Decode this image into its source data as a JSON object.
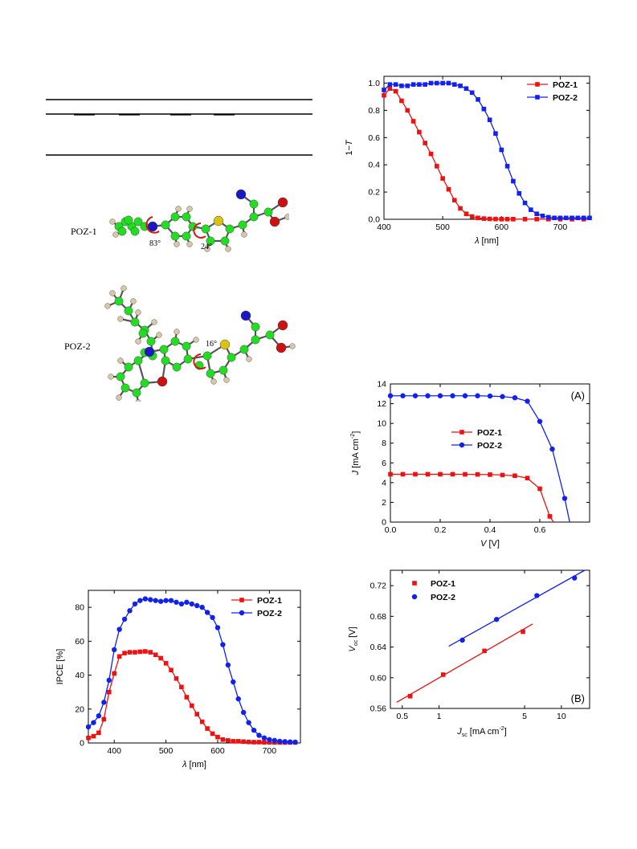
{
  "table_fragment": {
    "rules": 3
  },
  "molecules": {
    "poz1": {
      "label": "POZ-1",
      "angle_a": "83°",
      "angle_b": "24°"
    },
    "poz2": {
      "label": "POZ-2",
      "angle_a": "16°"
    }
  },
  "atom_colors": {
    "C": "#22dd22",
    "H": "#d8c8a8",
    "N": "#1a1ac0",
    "O": "#cc1111",
    "S": "#d8c21a"
  },
  "series_colors": {
    "POZ-1": "#ee1111",
    "POZ-2": "#1122ee"
  },
  "chart_data": [
    {
      "id": "absorbance",
      "type": "line",
      "xlabel_italic": "λ",
      "xlabel_rest": " [nm]",
      "ylabel_prefix": "1−",
      "ylabel_italic": "T",
      "xlim": [
        400,
        750
      ],
      "ylim": [
        0,
        1.05
      ],
      "xticks": [
        400,
        500,
        600,
        700
      ],
      "yticks": [
        "0.0",
        "0.2",
        "0.4",
        "0.6",
        "0.8",
        "1.0"
      ],
      "legend_position": "top-right",
      "series": [
        {
          "name": "POZ-1",
          "marker": "square",
          "x": [
            400,
            410,
            420,
            430,
            440,
            450,
            460,
            470,
            480,
            490,
            500,
            510,
            520,
            530,
            540,
            550,
            560,
            570,
            580,
            590,
            600,
            610,
            620,
            640,
            660,
            680,
            700,
            720,
            740
          ],
          "y": [
            0.91,
            0.96,
            0.94,
            0.87,
            0.8,
            0.72,
            0.64,
            0.56,
            0.48,
            0.39,
            0.3,
            0.22,
            0.14,
            0.08,
            0.04,
            0.02,
            0.01,
            0.005,
            0.003,
            0.002,
            0.001,
            0.001,
            0.001,
            0.001,
            0.001,
            0.001,
            0.001,
            0.001,
            0.001
          ]
        },
        {
          "name": "POZ-2",
          "marker": "square",
          "x": [
            400,
            410,
            420,
            430,
            440,
            450,
            460,
            470,
            480,
            490,
            500,
            510,
            520,
            530,
            540,
            550,
            560,
            570,
            580,
            590,
            600,
            610,
            620,
            630,
            640,
            650,
            660,
            670,
            680,
            690,
            700,
            710,
            720,
            730,
            740,
            750
          ],
          "y": [
            0.95,
            0.99,
            0.99,
            0.98,
            0.98,
            0.99,
            0.99,
            0.99,
            1.0,
            1.0,
            1.0,
            1.0,
            0.99,
            0.98,
            0.96,
            0.93,
            0.88,
            0.81,
            0.73,
            0.63,
            0.51,
            0.39,
            0.28,
            0.19,
            0.12,
            0.07,
            0.04,
            0.025,
            0.015,
            0.01,
            0.01,
            0.01,
            0.01,
            0.01,
            0.01,
            0.01
          ]
        }
      ]
    },
    {
      "id": "jv",
      "type": "line",
      "panel_label": "(A)",
      "xlabel_italic": "V",
      "xlabel_rest": " [V]",
      "ylabel_italic": "J",
      "ylabel_rest": " [mA cm",
      "ylabel_sup": "-2",
      "ylabel_end": "]",
      "xlim": [
        0,
        0.8
      ],
      "ylim": [
        0,
        14
      ],
      "xticks": [
        "0.0",
        "0.2",
        "0.4",
        "0.6"
      ],
      "yticks": [
        "0",
        "2",
        "4",
        "6",
        "8",
        "10",
        "12",
        "14"
      ],
      "legend_position": "center",
      "series": [
        {
          "name": "POZ-1",
          "marker": "square",
          "x": [
            0,
            0.05,
            0.1,
            0.15,
            0.2,
            0.25,
            0.3,
            0.35,
            0.4,
            0.45,
            0.5,
            0.55,
            0.6,
            0.64,
            0.655
          ],
          "y": [
            4.85,
            4.85,
            4.85,
            4.85,
            4.85,
            4.85,
            4.84,
            4.83,
            4.81,
            4.77,
            4.7,
            4.46,
            3.38,
            0.58,
            0
          ]
        },
        {
          "name": "POZ-2",
          "marker": "circle",
          "x": [
            0,
            0.05,
            0.1,
            0.15,
            0.2,
            0.25,
            0.3,
            0.35,
            0.4,
            0.45,
            0.5,
            0.55,
            0.6,
            0.65,
            0.7,
            0.72
          ],
          "y": [
            12.8,
            12.8,
            12.8,
            12.8,
            12.8,
            12.8,
            12.8,
            12.8,
            12.77,
            12.72,
            12.6,
            12.25,
            10.2,
            7.4,
            2.4,
            0
          ]
        }
      ]
    },
    {
      "id": "voc_jsc",
      "type": "scatter",
      "panel_label": "(B)",
      "xscale": "log",
      "xlabel_italic": "J",
      "xlabel_sub": "sc",
      "xlabel_rest": " [mA cm",
      "xlabel_sup": "-2",
      "xlabel_end": "]",
      "ylabel_italic": "V",
      "ylabel_sub": "oc",
      "ylabel_rest": " [V]",
      "xlim": [
        0.4,
        17
      ],
      "ylim": [
        0.56,
        0.74
      ],
      "xticks": [
        0.5,
        1,
        5,
        10
      ],
      "xtick_labels": [
        "0.5",
        "1",
        "5",
        "10"
      ],
      "yticks": [
        "0.56",
        "0.60",
        "0.64",
        "0.68",
        "0.72"
      ],
      "legend_position": "top-left",
      "series": [
        {
          "name": "POZ-1",
          "marker": "square",
          "x": [
            0.58,
            1.08,
            2.35,
            4.85
          ],
          "y": [
            0.576,
            0.604,
            0.635,
            0.66
          ],
          "fit": [
            [
              0.45,
              0.568
            ],
            [
              5.8,
              0.67
            ]
          ]
        },
        {
          "name": "POZ-2",
          "marker": "circle",
          "x": [
            1.55,
            2.95,
            6.3,
            12.8
          ],
          "y": [
            0.649,
            0.676,
            0.707,
            0.73
          ],
          "fit": [
            [
              1.2,
              0.641
            ],
            [
              15.5,
              0.74
            ]
          ]
        }
      ]
    },
    {
      "id": "ipce",
      "type": "line",
      "xlabel_italic": "λ",
      "xlabel_rest": " [nm]",
      "ylabel": "IPCE [%]",
      "xlim": [
        350,
        760
      ],
      "ylim": [
        0,
        90
      ],
      "xticks": [
        400,
        500,
        600,
        700
      ],
      "yticks": [
        "0",
        "20",
        "40",
        "60",
        "80"
      ],
      "legend_position": "top-right",
      "series": [
        {
          "name": "POZ-1",
          "marker": "square",
          "x": [
            350,
            360,
            370,
            380,
            390,
            400,
            410,
            420,
            430,
            440,
            450,
            460,
            470,
            480,
            490,
            500,
            510,
            520,
            530,
            540,
            550,
            560,
            570,
            580,
            590,
            600,
            610,
            620,
            630,
            640,
            650,
            660,
            670,
            680,
            690,
            700,
            710,
            720,
            730,
            740,
            750
          ],
          "y": [
            3,
            4,
            6,
            14,
            30,
            41,
            51,
            53,
            53.5,
            53.5,
            53.8,
            54,
            53.5,
            52,
            50,
            47,
            43,
            38,
            33,
            27,
            22,
            17,
            12.5,
            8.5,
            5.5,
            3.5,
            2,
            1.5,
            1,
            1,
            0.8,
            0.6,
            0.5,
            0.5,
            0.4,
            0.4,
            0.3,
            0.3,
            0.3,
            0.3,
            0.3
          ]
        },
        {
          "name": "POZ-2",
          "marker": "circle",
          "x": [
            350,
            360,
            370,
            380,
            390,
            400,
            410,
            420,
            430,
            440,
            450,
            460,
            470,
            480,
            490,
            500,
            510,
            520,
            530,
            540,
            550,
            560,
            570,
            580,
            590,
            600,
            610,
            620,
            630,
            640,
            650,
            660,
            670,
            680,
            690,
            700,
            710,
            720,
            730,
            740,
            750
          ],
          "y": [
            9.5,
            12,
            16,
            24,
            37,
            55,
            67,
            73,
            78,
            82,
            84,
            85,
            84.5,
            84,
            83.5,
            84,
            84,
            83,
            82,
            83,
            82,
            81,
            80,
            77,
            74,
            68,
            58,
            46,
            36,
            26,
            18,
            12,
            7.5,
            4.5,
            3,
            2,
            1.5,
            1,
            0.8,
            0.6,
            0.5
          ]
        }
      ]
    }
  ]
}
